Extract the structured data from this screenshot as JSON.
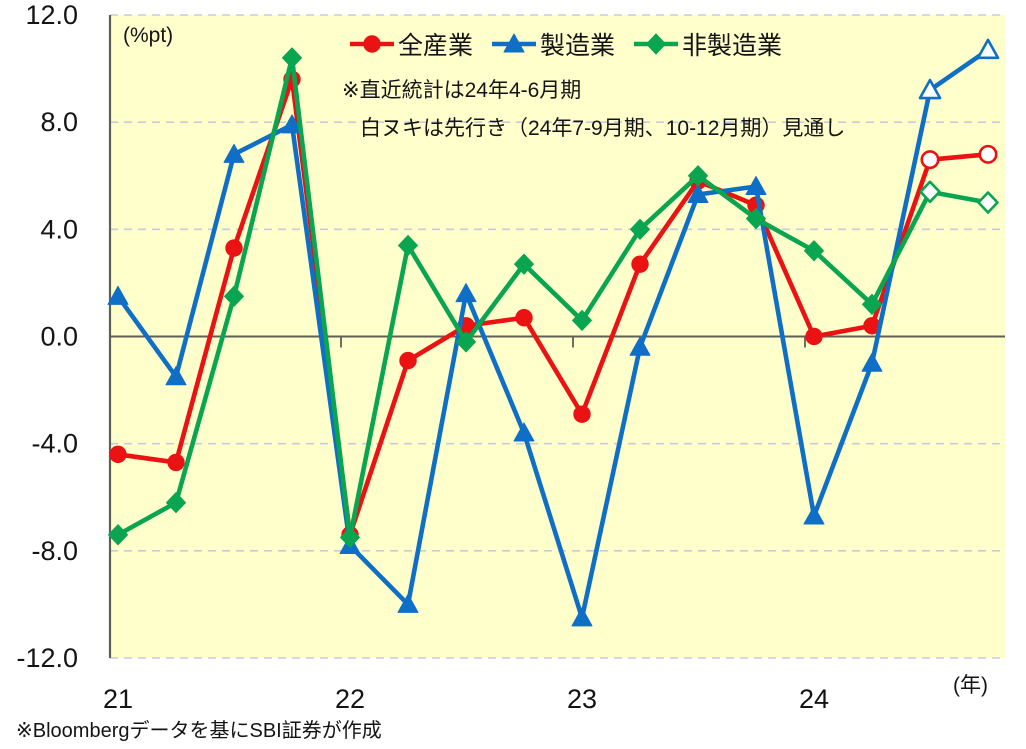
{
  "chart": {
    "unit_label": "(%pt)",
    "annotation_line1": "※直近統計は24年4-6月期",
    "annotation_line2": "白ヌキは先行き（24年7-9月期、10-12月期）見通し",
    "x_axis_unit": "(年)",
    "source_note": "※Bloombergデータを基にSBI証券が作成"
  },
  "chart_data": {
    "type": "line",
    "title": "",
    "ylabel": "%pt",
    "ylim": [
      -12.0,
      12.0
    ],
    "grid": "horizontal-dashed",
    "legend_position": "top-center",
    "categories": [
      "21Q1",
      "21Q2",
      "21Q3",
      "21Q4",
      "22Q1",
      "22Q2",
      "22Q3",
      "22Q4",
      "23Q1",
      "23Q2",
      "23Q3",
      "23Q4",
      "24Q1",
      "24Q2",
      "24Q3",
      "24Q4"
    ],
    "x_year_ticks": [
      {
        "label": "21",
        "quarter_index": 0
      },
      {
        "label": "22",
        "quarter_index": 4
      },
      {
        "label": "23",
        "quarter_index": 8
      },
      {
        "label": "24",
        "quarter_index": 12
      }
    ],
    "y_ticks": [
      {
        "label": "12.0",
        "value": 12.0
      },
      {
        "label": "8.0",
        "value": 8.0
      },
      {
        "label": "4.0",
        "value": 4.0
      },
      {
        "label": "0.0",
        "value": 0.0
      },
      {
        "label": "-4.0",
        "value": -4.0
      },
      {
        "label": "-8.0",
        "value": -8.0
      },
      {
        "label": "-12.0",
        "value": -12.0
      }
    ],
    "open_marker_count": 2,
    "forecast_note": "last 2 points (24年7-9月期, 10-12月期) are forecasts drawn as hollow markers",
    "series": [
      {
        "name": "全産業",
        "id": "all-industries",
        "marker": "circle",
        "color": "#ea1212",
        "values": [
          -4.4,
          -4.7,
          3.3,
          9.6,
          -7.4,
          -0.9,
          0.4,
          0.7,
          -2.9,
          2.7,
          5.8,
          4.9,
          0.0,
          0.4,
          6.6,
          6.8
        ]
      },
      {
        "name": "製造業",
        "id": "manufacturing",
        "marker": "triangle",
        "color": "#0f6fc6",
        "values": [
          1.5,
          -1.5,
          6.8,
          7.9,
          -7.8,
          -10.0,
          1.6,
          -3.6,
          -10.5,
          -0.4,
          5.3,
          5.6,
          -6.7,
          -1.0,
          9.2,
          10.7
        ]
      },
      {
        "name": "非製造業",
        "id": "non-manufacturing",
        "marker": "diamond",
        "color": "#0aa550",
        "values": [
          -7.4,
          -6.2,
          1.5,
          10.4,
          -7.5,
          3.4,
          -0.2,
          2.7,
          0.6,
          4.0,
          6.0,
          4.4,
          3.2,
          1.2,
          5.4,
          5.0
        ]
      }
    ],
    "colors": {
      "plot_bg": "#ffffcc",
      "grid": "#c7cbde",
      "zero_line": "#5f5f54",
      "axis": "#5f5f54",
      "text": "#141414"
    }
  }
}
